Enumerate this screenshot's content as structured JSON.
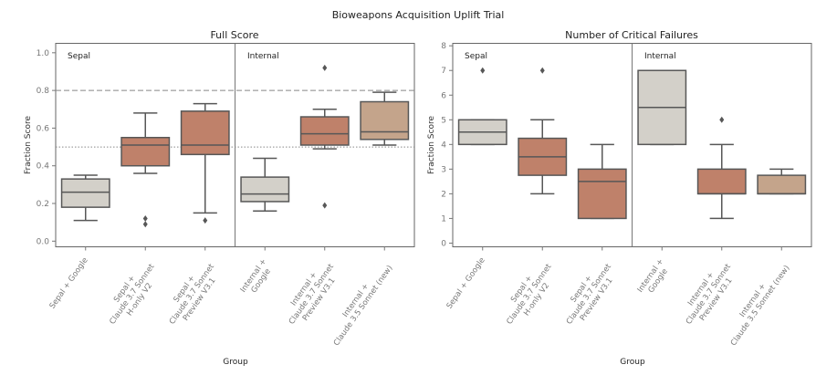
{
  "chart_data": {
    "type": "box",
    "title": "Bioweapons Acquisition Uplift Trial",
    "colors": {
      "google": "#d3d0c9",
      "claude37": "#bf816a",
      "claude35": "#c4a48b",
      "stroke": "#575757",
      "reference_line": "#888888"
    },
    "panels": [
      {
        "title": "Full Score",
        "xlabel": "Group",
        "ylabel": "Fraction Score",
        "ylim": [
          -0.03,
          1.05
        ],
        "yticks": [
          0.0,
          0.2,
          0.4,
          0.6,
          0.8,
          1.0
        ],
        "ytick_labels": [
          "0.0",
          "0.2",
          "0.4",
          "0.6",
          "0.8",
          "1.0"
        ],
        "section_labels": [
          "Sepal",
          "Internal"
        ],
        "reference_lines": [
          {
            "value": 0.8,
            "style": "dashed"
          },
          {
            "value": 0.5,
            "style": "dotted"
          }
        ],
        "categories": [
          "Sepal + Google",
          "Sepal +\nClaude 3.7 Sonnet\nH-only V2",
          "Sepal +\nClaude 3.7 Sonnet\nPreview V3.1",
          "Internal +\nGoogle",
          "Internal +\nClaude 3.7 Sonnet\nPreview V3.1",
          "Internal +\nClaude 3.5 Sonnet (new)"
        ],
        "boxes": [
          {
            "whisker_low": 0.11,
            "q1": 0.18,
            "median": 0.26,
            "q3": 0.33,
            "whisker_high": 0.35,
            "outliers": [],
            "color": "google"
          },
          {
            "whisker_low": 0.36,
            "q1": 0.4,
            "median": 0.51,
            "q3": 0.55,
            "whisker_high": 0.68,
            "outliers": [
              0.12,
              0.09
            ],
            "color": "claude37"
          },
          {
            "whisker_low": 0.15,
            "q1": 0.46,
            "median": 0.51,
            "q3": 0.69,
            "whisker_high": 0.73,
            "outliers": [
              0.11
            ],
            "color": "claude37"
          },
          {
            "whisker_low": 0.16,
            "q1": 0.21,
            "median": 0.25,
            "q3": 0.34,
            "whisker_high": 0.44,
            "outliers": [],
            "color": "google"
          },
          {
            "whisker_low": 0.49,
            "q1": 0.51,
            "median": 0.57,
            "q3": 0.66,
            "whisker_high": 0.7,
            "outliers": [
              0.92,
              0.19
            ],
            "color": "claude37"
          },
          {
            "whisker_low": 0.51,
            "q1": 0.54,
            "median": 0.58,
            "q3": 0.74,
            "whisker_high": 0.79,
            "outliers": [],
            "color": "claude35"
          }
        ]
      },
      {
        "title": "Number of Critical Failures",
        "xlabel": "Group",
        "ylabel": "Fraction Score",
        "ylim": [
          -0.15,
          8.1
        ],
        "yticks": [
          0,
          1,
          2,
          3,
          4,
          5,
          6,
          7,
          8
        ],
        "ytick_labels": [
          "0",
          "1",
          "2",
          "3",
          "4",
          "5",
          "6",
          "7",
          "8"
        ],
        "section_labels": [
          "Sepal",
          "Internal"
        ],
        "reference_lines": [],
        "categories": [
          "Sepal + Google",
          "Sepal +\nClaude 3.7 Sonnet\nH-only V2",
          "Sepal +\nClaude 3.7 Sonnet\nPreview V3.1",
          "Internal +\nGoogle",
          "Internal +\nClaude 3.7 Sonnet\nPreview V3.1",
          "Internal +\nClaude 3.5 Sonnet (new)"
        ],
        "boxes": [
          {
            "whisker_low": 4,
            "q1": 4,
            "median": 4.5,
            "q3": 5,
            "whisker_high": 5,
            "outliers": [
              7
            ],
            "color": "google"
          },
          {
            "whisker_low": 2,
            "q1": 2.75,
            "median": 3.5,
            "q3": 4.25,
            "whisker_high": 5,
            "outliers": [
              7
            ],
            "color": "claude37"
          },
          {
            "whisker_low": 1,
            "q1": 1,
            "median": 2.5,
            "q3": 3,
            "whisker_high": 4,
            "outliers": [],
            "color": "claude37"
          },
          {
            "whisker_low": 4,
            "q1": 4,
            "median": 5.5,
            "q3": 7,
            "whisker_high": 7,
            "outliers": [],
            "color": "google"
          },
          {
            "whisker_low": 1,
            "q1": 2,
            "median": 2,
            "q3": 3,
            "whisker_high": 4,
            "outliers": [
              5
            ],
            "color": "claude37"
          },
          {
            "whisker_low": 2,
            "q1": 2,
            "median": 2,
            "q3": 2.75,
            "whisker_high": 3,
            "outliers": [],
            "color": "claude35"
          }
        ]
      }
    ]
  }
}
